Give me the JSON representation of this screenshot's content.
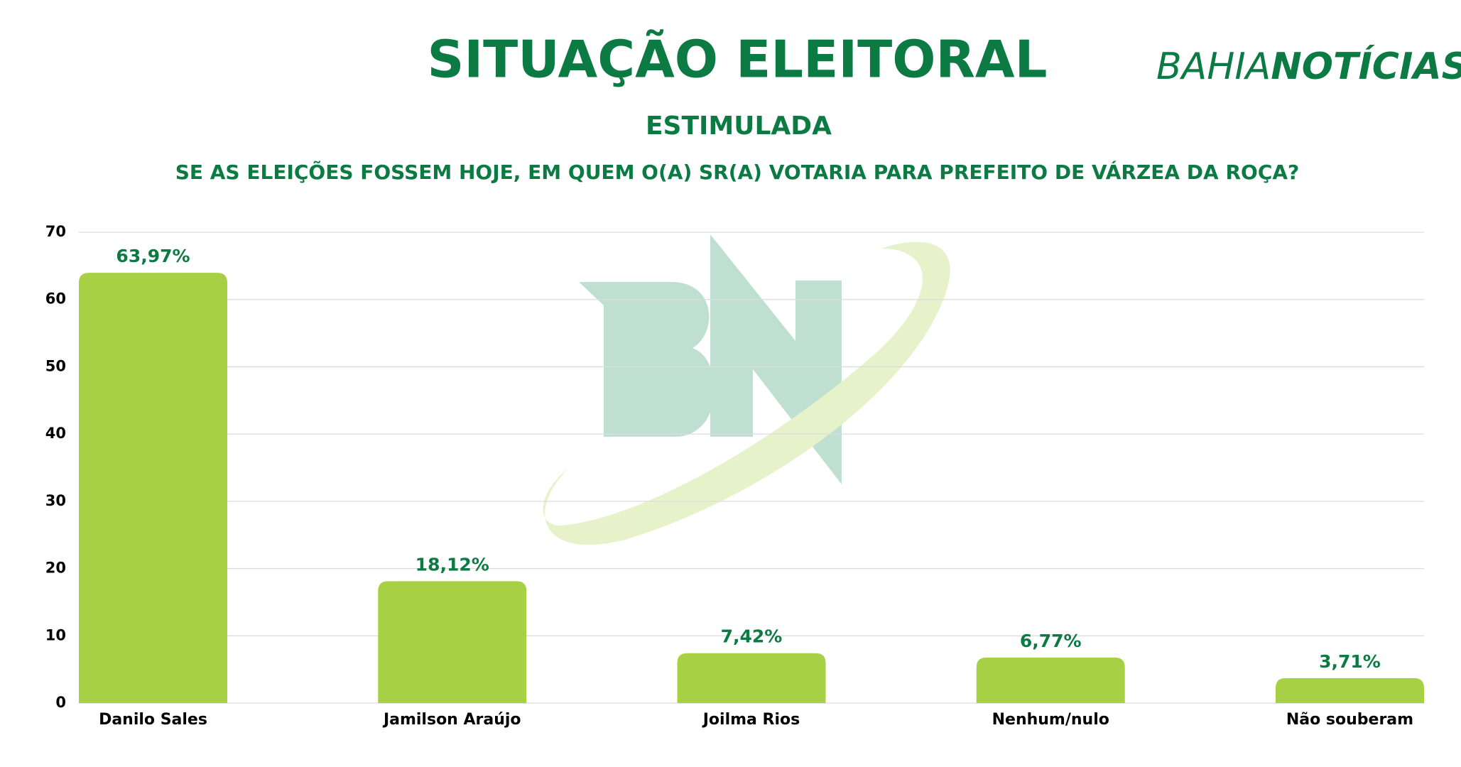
{
  "chart_data": {
    "type": "bar",
    "title": "SITUAÇÃO ELEITORAL",
    "subtitle": "ESTIMULADA",
    "question": "SE AS ELEIÇÕES FOSSEM HOJE, EM QUEM O(A) SR(A) VOTARIA PARA PREFEITO DE VÁRZEA DA ROÇA?",
    "logo": [
      "BAHIA",
      "NOTÍCIAS"
    ],
    "categories": [
      "Danilo Sales",
      "Jamilson Araújo",
      "Joilma Rios",
      "Nenhum/nulo",
      "Não souberam"
    ],
    "values": [
      63.97,
      18.12,
      7.42,
      6.77,
      3.71
    ],
    "value_labels": [
      "63,97%",
      "18,12%",
      "7,42%",
      "6,77%",
      "3,71%"
    ],
    "color": "#a8d045",
    "ylim": [
      0,
      70
    ],
    "yticks": [
      0,
      10,
      20,
      30,
      40,
      50,
      60,
      70
    ],
    "grid": true
  }
}
